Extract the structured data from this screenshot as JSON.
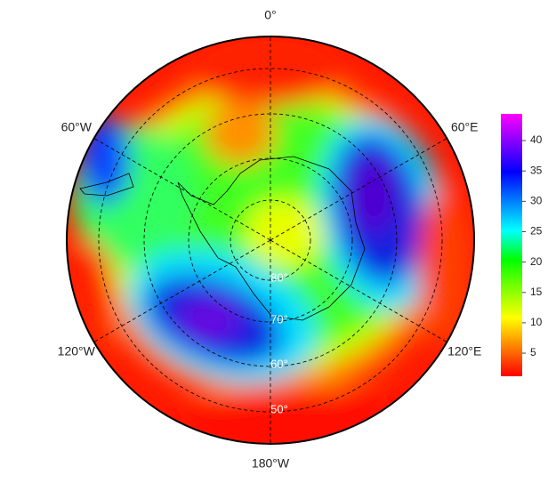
{
  "map": {
    "lon_labels": [
      "0°",
      "60°E",
      "120°E",
      "180°W",
      "120°W",
      "60°W"
    ],
    "lat_labels": [
      "80°",
      "70°",
      "60°",
      "50°"
    ]
  },
  "colorbar": {
    "ylim": [
      1.2,
      44.4
    ],
    "yticks": [
      5,
      10,
      15,
      20,
      25,
      30,
      35,
      40
    ],
    "colors": [
      "#ff0000",
      "#ff8000",
      "#ffff00",
      "#80ff00",
      "#00ff00",
      "#00ffff",
      "#0080ff",
      "#0000ff",
      "#8000ff",
      "#ff00ff"
    ]
  }
}
